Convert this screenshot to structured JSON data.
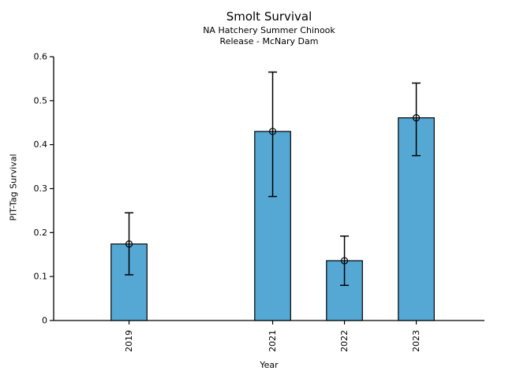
{
  "chart_data": {
    "type": "bar",
    "title": "Smolt Survival",
    "subtitle_lines": [
      "NA Hatchery Summer Chinook",
      "Release - McNary Dam"
    ],
    "xlabel": "Year",
    "ylabel": "PIT-Tag Survival",
    "categories": [
      2019,
      2021,
      2022,
      2023
    ],
    "values": [
      0.174,
      0.43,
      0.136,
      0.461
    ],
    "error_low": [
      0.104,
      0.282,
      0.08,
      0.375
    ],
    "error_high": [
      0.245,
      0.565,
      0.192,
      0.54
    ],
    "ylim": [
      0,
      0.6
    ],
    "yticks": [
      0,
      0.1,
      0.2,
      0.3,
      0.4,
      0.5,
      0.6
    ],
    "xlim": [
      2017.95,
      2023.95
    ],
    "bar_width_years": 0.5,
    "bar_color": "#55A8D4",
    "bar_edge_color": "#000000",
    "error_color": "#000000",
    "marker": "open-circle",
    "x_tick_rotation": 90,
    "grid": false,
    "legend": null
  }
}
